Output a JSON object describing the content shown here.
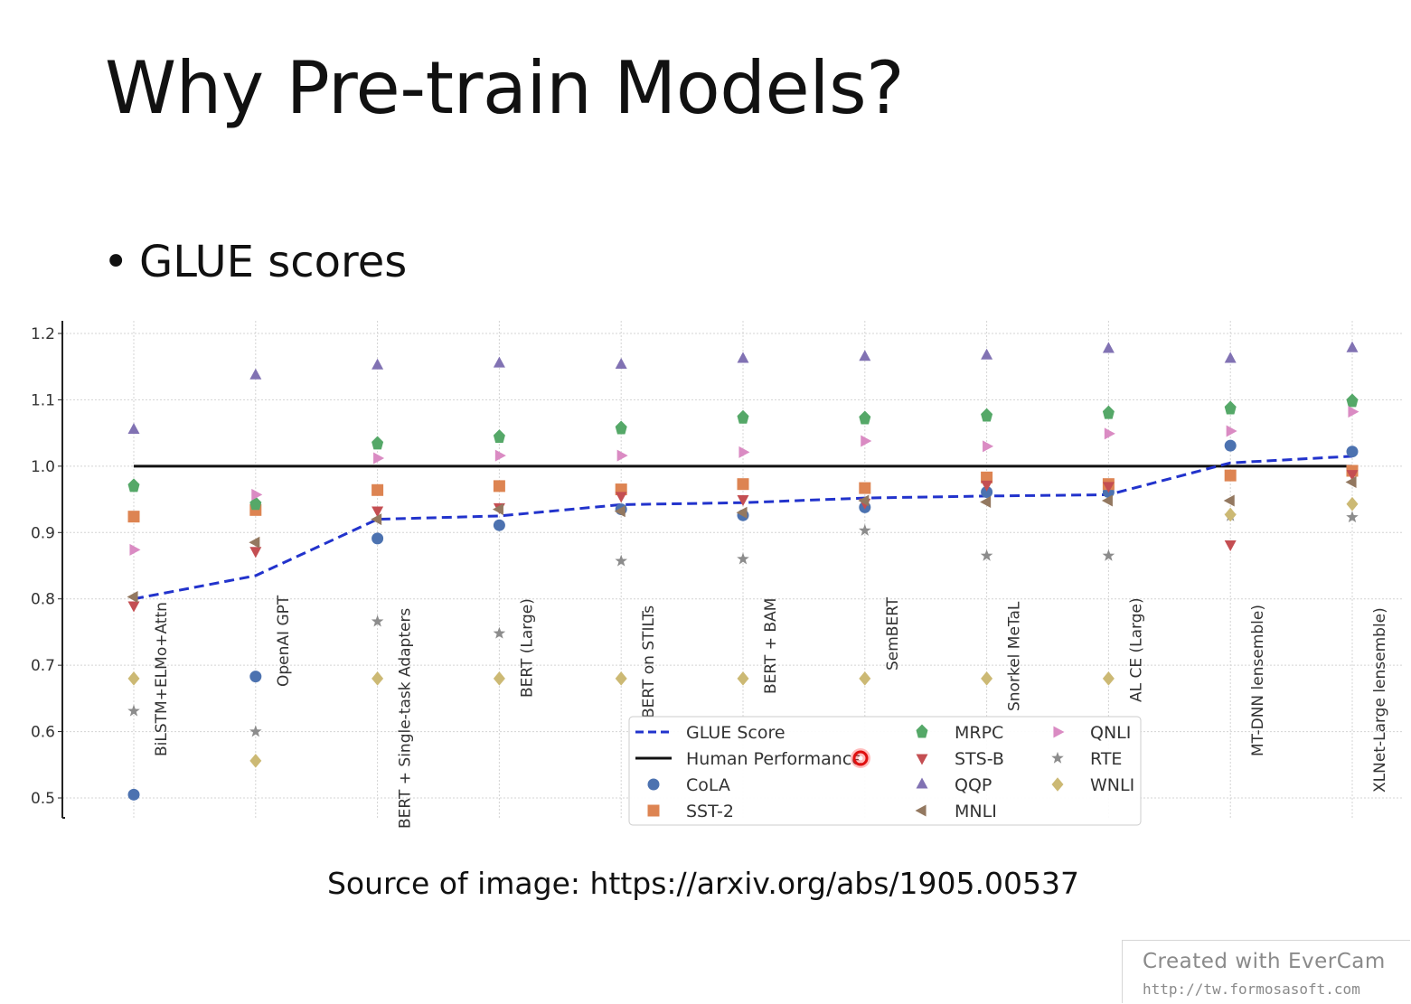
{
  "slide": {
    "title": "Why Pre-train Models?",
    "bullet_marker": "•",
    "bullet": "GLUE scores",
    "caption": "Source of image: https://arxiv.org/abs/1905.00537"
  },
  "watermark": {
    "title": "Created with EverCam",
    "url": "http://tw.formosasoft.com"
  },
  "legend_columns": [
    [
      "GLUE Score",
      "Human Performance",
      "CoLA",
      "SST-2"
    ],
    [
      "MRPC",
      "STS-B",
      "QQP",
      "MNLI"
    ],
    [
      "QNLI",
      "RTE",
      "WNLI"
    ]
  ],
  "chart_data": {
    "type": "scatter",
    "title": "",
    "xlabel": "",
    "ylabel": "",
    "ylim": [
      0.5,
      1.2
    ],
    "yticks": [
      "0.5",
      "0.6",
      "0.7",
      "0.8",
      "0.9",
      "1.0",
      "1.1",
      "1.2"
    ],
    "grid": true,
    "legend_position": "bottom-center",
    "categories": [
      "BiLSTM+ELMo+Attn",
      "OpenAI GPT",
      "BERT + Single-task Adapters",
      "BERT (Large)",
      "BERT on STILTs",
      "BERT + BAM",
      "SemBERT",
      "Snorkel MeTaL",
      "AL CE (Large)",
      "MT-DNN lensemble)",
      "XLNet-Large lensemble)"
    ],
    "series": [
      {
        "name": "GLUE Score",
        "marker": "dashed-line",
        "color": "#2233cc",
        "values": [
          0.8,
          0.835,
          0.92,
          0.925,
          0.942,
          0.945,
          0.952,
          0.955,
          0.957,
          1.005,
          1.015
        ]
      },
      {
        "name": "Human Performance",
        "marker": "solid-line",
        "color": "#111111",
        "values": [
          1.0,
          1.0,
          1.0,
          1.0,
          1.0,
          1.0,
          1.0,
          1.0,
          1.0,
          1.0,
          1.0
        ]
      },
      {
        "name": "CoLA",
        "marker": "circle",
        "color": "#4c72b0",
        "values": [
          0.505,
          0.683,
          0.891,
          0.911,
          0.935,
          0.926,
          0.938,
          0.961,
          0.961,
          1.031,
          1.022
        ]
      },
      {
        "name": "SST-2",
        "marker": "square",
        "color": "#dd8452",
        "values": [
          0.924,
          0.934,
          0.964,
          0.97,
          0.965,
          0.973,
          0.967,
          0.983,
          0.973,
          0.986,
          0.993
        ]
      },
      {
        "name": "MRPC",
        "marker": "pentagon",
        "color": "#55a868",
        "values": [
          0.97,
          0.943,
          1.034,
          1.044,
          1.057,
          1.073,
          1.072,
          1.076,
          1.08,
          1.087,
          1.098
        ]
      },
      {
        "name": "STS-B",
        "marker": "triangle-down",
        "color": "#c44e52",
        "values": [
          0.79,
          0.872,
          0.933,
          0.938,
          0.955,
          0.95,
          0.945,
          0.972,
          0.97,
          0.882,
          0.988
        ]
      },
      {
        "name": "QQP",
        "marker": "triangle-up",
        "color": "#8172b3",
        "values": [
          1.055,
          1.137,
          1.152,
          1.155,
          1.153,
          1.162,
          1.165,
          1.167,
          1.177,
          1.162,
          1.178
        ]
      },
      {
        "name": "MNLI",
        "marker": "triangle-left",
        "color": "#937860",
        "values": [
          0.803,
          0.885,
          0.92,
          0.935,
          0.932,
          0.93,
          0.948,
          0.946,
          0.948,
          0.948,
          0.976
        ]
      },
      {
        "name": "QNLI",
        "marker": "triangle-right",
        "color": "#da8bc3",
        "values": [
          0.874,
          0.957,
          1.012,
          1.016,
          1.016,
          1.021,
          1.038,
          1.03,
          1.049,
          1.053,
          1.082
        ]
      },
      {
        "name": "RTE",
        "marker": "star",
        "color": "#8c8c8c",
        "values": [
          0.631,
          0.6,
          0.766,
          0.748,
          0.857,
          0.86,
          0.903,
          0.865,
          0.865,
          0.925,
          0.923
        ]
      },
      {
        "name": "WNLI",
        "marker": "diamond",
        "color": "#ccb974",
        "values": [
          0.68,
          0.556,
          0.68,
          0.68,
          0.68,
          0.68,
          0.68,
          0.68,
          0.68,
          0.927,
          0.943
        ]
      }
    ]
  }
}
